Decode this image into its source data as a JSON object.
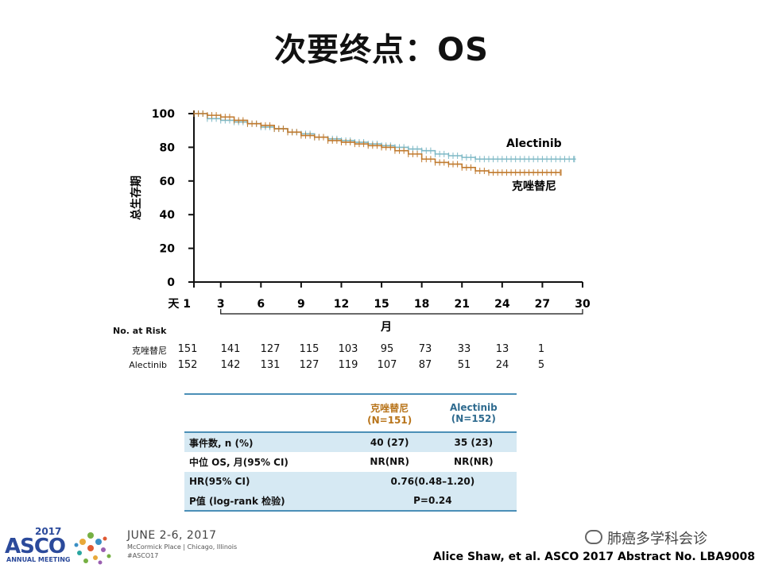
{
  "title": "次要终点：OS",
  "chart_data": {
    "type": "line",
    "ylabel": "总生存期",
    "xlabel": "月",
    "x_ticks": [
      "天 1",
      "3",
      "6",
      "9",
      "12",
      "15",
      "18",
      "21",
      "24",
      "27",
      "30"
    ],
    "x_tick_values": [
      1,
      3,
      6,
      9,
      12,
      15,
      18,
      21,
      24,
      27,
      30
    ],
    "y_ticks": [
      0,
      20,
      40,
      60,
      80,
      100
    ],
    "ylim": [
      0,
      100
    ],
    "xlim": [
      1,
      30
    ],
    "series": [
      {
        "name": "Alectinib",
        "color": "#7fb9c6",
        "x": [
          1,
          2,
          3,
          4,
          5,
          6,
          7,
          8,
          9,
          10,
          11,
          12,
          13,
          14,
          15,
          16,
          17,
          18,
          19,
          20,
          21,
          22,
          23,
          24,
          25,
          26,
          27,
          28,
          29
        ],
        "y": [
          100,
          97,
          96,
          95,
          94,
          92,
          91,
          89,
          88,
          86,
          85,
          84,
          83,
          82,
          81,
          80,
          79,
          78,
          76,
          75,
          74,
          73,
          73,
          73,
          73,
          73,
          73,
          73,
          73
        ]
      },
      {
        "name": "克唑替尼",
        "color": "#c07a2e",
        "x": [
          1,
          2,
          3,
          4,
          5,
          6,
          7,
          8,
          9,
          10,
          11,
          12,
          13,
          14,
          15,
          16,
          17,
          18,
          19,
          20,
          21,
          22,
          23,
          24,
          25,
          26,
          27,
          28
        ],
        "y": [
          100,
          99,
          98,
          96,
          94,
          93,
          91,
          89,
          87,
          86,
          84,
          83,
          82,
          81,
          80,
          78,
          76,
          73,
          71,
          70,
          68,
          66,
          65,
          65,
          65,
          65,
          65,
          65
        ]
      }
    ],
    "grid": false,
    "legend": "inline-right"
  },
  "risk_table": {
    "header": "No. at Risk",
    "rows": [
      {
        "label": "克唑替尼",
        "values": [
          "151",
          "141",
          "127",
          "115",
          "103",
          "95",
          "73",
          "33",
          "13",
          "1"
        ]
      },
      {
        "label": "Alectinib",
        "values": [
          "152",
          "142",
          "131",
          "127",
          "119",
          "107",
          "87",
          "51",
          "24",
          "5"
        ]
      }
    ]
  },
  "summary_table": {
    "col1_header": "克唑替尼",
    "col1_sub": "(N=151)",
    "col2_header": "Alectinib",
    "col2_sub": "(N=152)",
    "rows": [
      {
        "label": "事件数, n (%)",
        "v1": "40 (27)",
        "v2": "35 (23)"
      },
      {
        "label": "中位 OS, 月(95% CI)",
        "v1": "NR(NR)",
        "v2": "NR(NR)"
      }
    ],
    "hr_label": "HR(95% CI)",
    "hr_value": "0.76(0.48–1.20)",
    "p_label": "P值 (log-rank 检验)",
    "p_value": "P=0.24"
  },
  "footer": {
    "logo_year": "2017",
    "logo_name": "ASCO",
    "logo_sub": "ANNUAL MEETING",
    "dates": "JUNE 2-6, 2017",
    "place": "McCormick Place | Chicago, Illinois",
    "hashtag": "#ASCO17",
    "wechat": "肺癌多学科会诊",
    "citation": "Alice Shaw, et al.  ASCO 2017 Abstract No. LBA9008"
  }
}
